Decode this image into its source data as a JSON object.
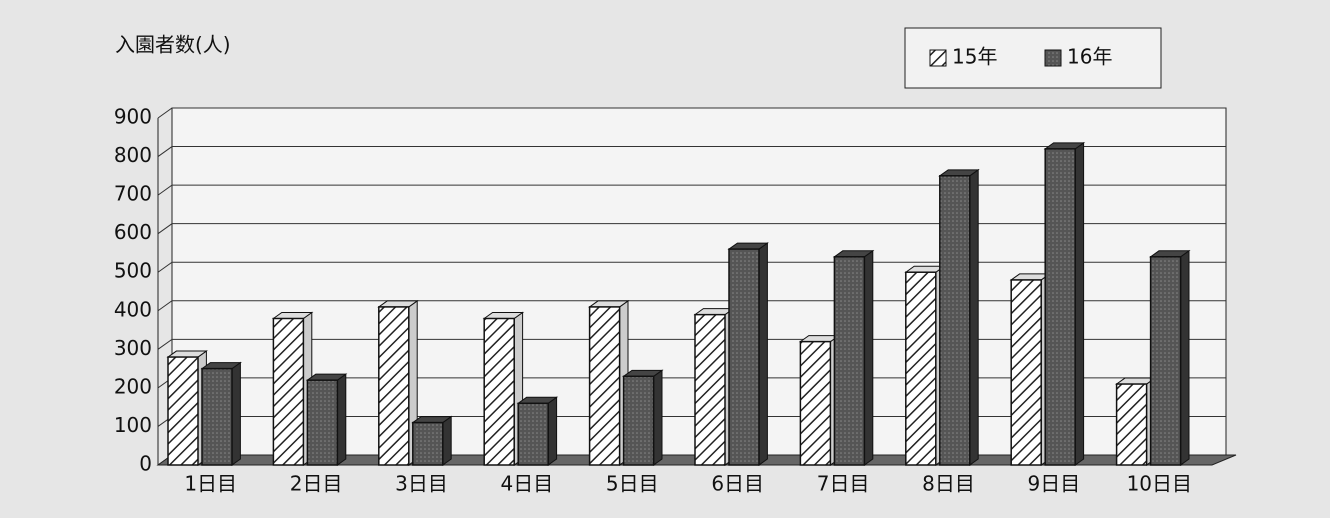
{
  "chart_data": {
    "type": "bar",
    "title": "入園者数(人)",
    "categories": [
      "1日目",
      "2日目",
      "3日目",
      "4日目",
      "5日目",
      "6日目",
      "7日目",
      "8日目",
      "9日目",
      "10日目"
    ],
    "series": [
      {
        "name": "15年",
        "color": "#ffffff",
        "values": [
          280,
          380,
          410,
          380,
          410,
          390,
          320,
          500,
          480,
          210
        ]
      },
      {
        "name": "16年",
        "color": "#555555",
        "values": [
          250,
          220,
          110,
          160,
          230,
          560,
          540,
          750,
          820,
          540
        ]
      }
    ],
    "ylim": [
      0,
      900
    ],
    "yticks": [
      0,
      100,
      200,
      300,
      400,
      500,
      600,
      700,
      800,
      900
    ],
    "grid": true,
    "legend": "top-right"
  }
}
